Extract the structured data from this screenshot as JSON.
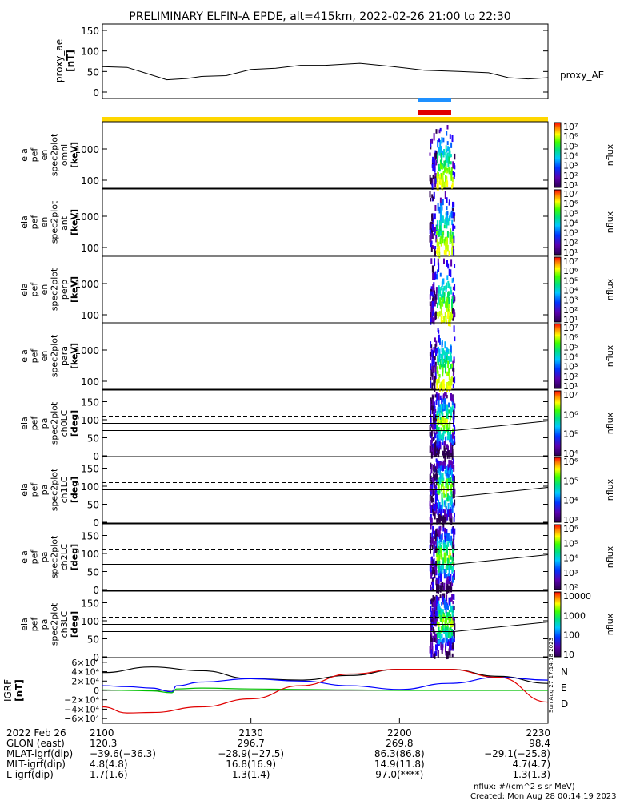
{
  "title": "PRELIMINARY ELFIN-A EPDE, alt=415km, 2022-02-26 21:00 to 22:30",
  "colors": {
    "yellow_bar": "#ffd700",
    "blue_bar": "#1e90ff",
    "red_bar": "#e00000",
    "N": "#0000ff",
    "E": "#00c000",
    "D": "#e00000"
  },
  "proxy_ae": {
    "ylabel_line1": "proxy_ae",
    "ylabel_line2": "[nT]",
    "legend": "proxy_AE",
    "ticks": [
      "150",
      "100",
      "50",
      "0"
    ]
  },
  "panels": [
    {
      "id": "omni",
      "ylabel": [
        "ela",
        "pef",
        "en",
        "spec2plot",
        "omni",
        "[keV]"
      ],
      "ticks": [
        "1000",
        "100"
      ]
    },
    {
      "id": "anti",
      "ylabel": [
        "ela",
        "pef",
        "en",
        "spec2plot",
        "anti",
        "[keV]"
      ],
      "ticks": [
        "1000",
        "100"
      ]
    },
    {
      "id": "perp",
      "ylabel": [
        "ela",
        "pef",
        "en",
        "spec2plot",
        "perp",
        "[keV]"
      ],
      "ticks": [
        "1000",
        "100"
      ]
    },
    {
      "id": "para",
      "ylabel": [
        "ela",
        "pef",
        "en",
        "spec2plot",
        "para",
        "[keV]"
      ],
      "ticks": [
        "1000",
        "100"
      ]
    },
    {
      "id": "ch0LC",
      "ylabel": [
        "ela",
        "pef",
        "pa",
        "spec2plot",
        "ch0LC",
        "[deg]"
      ],
      "ticks": [
        "150",
        "100",
        "50",
        "0"
      ]
    },
    {
      "id": "ch1LC",
      "ylabel": [
        "ela",
        "pef",
        "pa",
        "spec2plot",
        "ch1LC",
        "[deg]"
      ],
      "ticks": [
        "150",
        "100",
        "50",
        "0"
      ]
    },
    {
      "id": "ch2LC",
      "ylabel": [
        "ela",
        "pef",
        "pa",
        "spec2plot",
        "ch2LC",
        "[deg]"
      ],
      "ticks": [
        "150",
        "100",
        "50",
        "0"
      ]
    },
    {
      "id": "ch3LC",
      "ylabel": [
        "ela",
        "pef",
        "pa",
        "spec2plot",
        "ch3LC",
        "[deg]"
      ],
      "ticks": [
        "150",
        "100",
        "50",
        "0"
      ]
    }
  ],
  "colorbars": [
    {
      "label": "nflux",
      "ticks": [
        "10⁷",
        "10⁶",
        "10⁵",
        "10⁴",
        "10³",
        "10²",
        "10¹"
      ]
    },
    {
      "label": "nflux",
      "ticks": [
        "10⁷",
        "10⁶",
        "10⁵",
        "10⁴",
        "10³",
        "10²",
        "10¹"
      ]
    },
    {
      "label": "nflux",
      "ticks": [
        "10⁷",
        "10⁶",
        "10⁵",
        "10⁴",
        "10³",
        "10²",
        "10¹"
      ]
    },
    {
      "label": "nflux",
      "ticks": [
        "10⁷",
        "10⁶",
        "10⁵",
        "10⁴",
        "10³",
        "10²",
        "10¹"
      ]
    },
    {
      "label": "nflux",
      "ticks": [
        "10⁷",
        "10⁶",
        "10⁵",
        "10⁴"
      ]
    },
    {
      "label": "nflux",
      "ticks": [
        "10⁶",
        "10⁵",
        "10⁴",
        "10³"
      ]
    },
    {
      "label": "nflux",
      "ticks": [
        "10⁶",
        "10⁵",
        "10⁴",
        "10³",
        "10²"
      ]
    },
    {
      "label": "nflux",
      "ticks": [
        "10000",
        "1000",
        "100",
        "10"
      ]
    }
  ],
  "igrf": {
    "ylabel_line1": "IGRF",
    "ylabel_line2": "[nT]",
    "ticks": [
      "6×10⁴",
      "4×10⁴",
      "2×10⁴",
      "0",
      "−2×10⁴",
      "−4×10⁴",
      "−6×10⁴"
    ],
    "legend": [
      "N",
      "E",
      "D"
    ],
    "stamp": "Sun Aug 27 17:14:18 2023"
  },
  "chart_data": {
    "type": "line",
    "title": "PRELIMINARY ELFIN-A EPDE, alt=415km, 2022-02-26 21:00 to 22:30",
    "x_range_minutes": [
      0,
      90
    ],
    "proxy_ae": {
      "ylim": [
        0,
        150
      ],
      "x": [
        0,
        5,
        9,
        13,
        17,
        20,
        25,
        30,
        35,
        40,
        45,
        52,
        58,
        65,
        72,
        78,
        82,
        86,
        90
      ],
      "y": [
        62,
        60,
        45,
        30,
        33,
        38,
        40,
        55,
        58,
        65,
        65,
        70,
        63,
        53,
        50,
        47,
        35,
        32,
        35
      ]
    },
    "igrf": {
      "ylim": [
        -70000,
        70000
      ],
      "series": [
        {
          "name": "Total",
          "x": [
            0,
            10,
            20,
            30,
            40,
            50,
            60,
            70,
            80,
            90
          ],
          "y": [
            38000,
            50000,
            42000,
            25000,
            22000,
            32000,
            45000,
            45000,
            30000,
            15000
          ]
        },
        {
          "name": "N",
          "x": [
            0,
            5,
            10,
            14,
            15,
            20,
            30,
            40,
            50,
            60,
            70,
            80,
            90
          ],
          "y": [
            10000,
            8000,
            5000,
            -3000,
            10000,
            18000,
            25000,
            20000,
            10000,
            2000,
            15000,
            28000,
            22000
          ]
        },
        {
          "name": "E",
          "x": [
            0,
            5,
            10,
            14,
            15,
            20,
            30,
            40,
            50,
            60,
            70,
            80,
            90
          ],
          "y": [
            1000,
            0,
            -1000,
            -5000,
            3000,
            5000,
            3000,
            2000,
            1000,
            0,
            0,
            0,
            0
          ]
        },
        {
          "name": "D",
          "x": [
            0,
            5,
            10,
            20,
            30,
            40,
            50,
            60,
            70,
            80,
            90
          ],
          "y": [
            -35000,
            -48000,
            -47000,
            -35000,
            -18000,
            10000,
            35000,
            45000,
            45000,
            28000,
            -25000
          ]
        }
      ]
    },
    "spectrogram_burst_minutes": [
      66,
      71
    ]
  },
  "axis": {
    "xticks": [
      "2100",
      "2130",
      "2200",
      "2230"
    ],
    "row_labels": [
      "2022 Feb 26",
      "GLON (east)",
      "MLAT-igrf(dip)",
      "MLT-igrf(dip)",
      "L-igrf(dip)"
    ],
    "columns": [
      [
        "2100",
        "120.3",
        "−39.6(−36.3)",
        "4.8(4.8)",
        "1.7(1.6)"
      ],
      [
        "2130",
        "296.7",
        "−28.9(−27.5)",
        "16.8(16.9)",
        "1.3(1.4)"
      ],
      [
        "2200",
        "269.8",
        "86.3(86.8)",
        "14.9(11.8)",
        "97.0(****)"
      ],
      [
        "2230",
        "98.4",
        "−29.1(−25.8)",
        "4.7(4.7)",
        "1.3(1.3)"
      ]
    ]
  },
  "footer": {
    "units": "nflux: #/(cm^2 s sr MeV)",
    "created": "Created: Mon Aug 28 00:14:19 2023"
  }
}
